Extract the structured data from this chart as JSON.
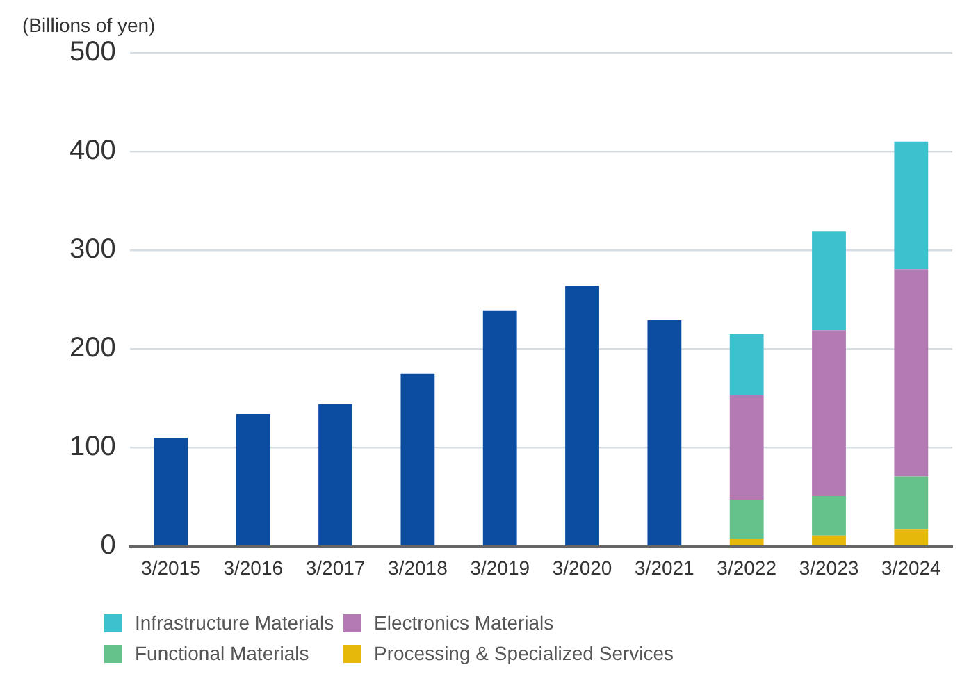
{
  "chart_data": {
    "type": "bar",
    "ylabel": "(Billions of yen)",
    "categories": [
      "3/2015",
      "3/2016",
      "3/2017",
      "3/2018",
      "3/2019",
      "3/2020",
      "3/2021",
      "3/2022",
      "3/2023",
      "3/2024"
    ],
    "stacked": true,
    "ylim": [
      0,
      500
    ],
    "yticks": [
      0,
      100,
      200,
      300,
      400,
      500
    ],
    "grid": "y",
    "legend": "bottom",
    "series": [
      {
        "color": "#0c4da2",
        "values": [
          110,
          134,
          144,
          175,
          239,
          264,
          229,
          null,
          null,
          null
        ]
      },
      {
        "name": "Processing & Specialized Services",
        "color": "#e6b80a",
        "values": [
          null,
          null,
          null,
          null,
          null,
          null,
          null,
          8,
          11,
          17
        ]
      },
      {
        "name": "Functional Materials",
        "color": "#64c28a",
        "values": [
          null,
          null,
          null,
          null,
          null,
          null,
          null,
          39,
          40,
          54
        ]
      },
      {
        "name": "Electronics Materials",
        "color": "#b47ab4",
        "values": [
          null,
          null,
          null,
          null,
          null,
          null,
          null,
          106,
          168,
          210
        ]
      },
      {
        "name": "Infrastructure Materials",
        "color": "#3dc1cf",
        "values": [
          null,
          null,
          null,
          null,
          null,
          null,
          null,
          62,
          100,
          129
        ]
      }
    ]
  }
}
